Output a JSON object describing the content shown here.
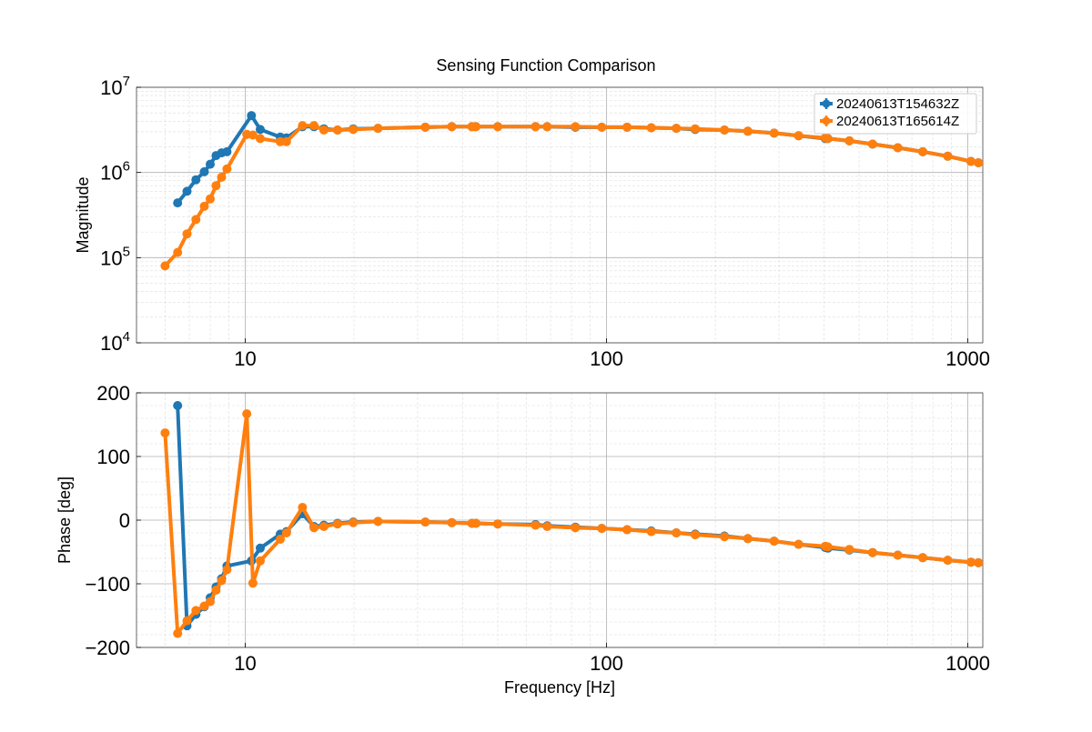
{
  "chart_data": [
    {
      "type": "line",
      "title": "Sensing Function Comparison",
      "xlabel": "",
      "ylabel": "Magnitude",
      "xscale": "log",
      "yscale": "log",
      "xlim": [
        5,
        1100
      ],
      "ylim": [
        10000,
        10000000
      ],
      "xticks": [
        {
          "value": 10,
          "label": "10"
        },
        {
          "value": 100,
          "label": "100"
        },
        {
          "value": 1000,
          "label": "1000"
        }
      ],
      "yticks": [
        {
          "value": 10000,
          "base": "10",
          "exp": "4"
        },
        {
          "value": 100000,
          "base": "10",
          "exp": "5"
        },
        {
          "value": 1000000,
          "base": "10",
          "exp": "6"
        },
        {
          "value": 10000000,
          "base": "10",
          "exp": "7"
        }
      ],
      "grid": true,
      "legend": "top-right",
      "series": [
        {
          "name": "20240613T154632Z",
          "color": "#1f77b4",
          "x": [
            6.5,
            6.9,
            7.3,
            7.7,
            8.0,
            8.3,
            8.6,
            8.9,
            10.4,
            11.0,
            12.5,
            13.0,
            14.4,
            15.5,
            16.5,
            18.0,
            19.9,
            23.3,
            31.5,
            37.3,
            42.4,
            43.5,
            50.0,
            63.6,
            68.5,
            82.0,
            97.0,
            114.0,
            133.0,
            156.0,
            176.0,
            212.0,
            246.0,
            291.0,
            340.0,
            403.0,
            410.0,
            470.0,
            545.0,
            640.0,
            750.0,
            880.0,
            1020.0,
            1070.0
          ],
          "y": [
            440000,
            600000,
            820000,
            1020000,
            1250000,
            1580000,
            1700000,
            1750000,
            4650000,
            3200000,
            2600000,
            2550000,
            3450000,
            3450000,
            3250000,
            3150000,
            3250000,
            3300000,
            3400000,
            3450000,
            3450000,
            3450000,
            3450000,
            3450000,
            3450000,
            3400000,
            3400000,
            3400000,
            3350000,
            3300000,
            3200000,
            3150000,
            3050000,
            2900000,
            2700000,
            2500000,
            2500000,
            2350000,
            2150000,
            1950000,
            1750000,
            1550000,
            1350000,
            1300000
          ]
        },
        {
          "name": "20240613T165614Z",
          "color": "#ff7f0e",
          "x": [
            6.0,
            6.5,
            6.9,
            7.3,
            7.7,
            8.0,
            8.3,
            8.6,
            8.9,
            10.1,
            10.5,
            11.0,
            12.5,
            13.0,
            14.4,
            15.5,
            16.5,
            18.0,
            19.9,
            23.3,
            31.5,
            37.3,
            42.4,
            43.5,
            50.0,
            63.6,
            68.5,
            82.0,
            97.0,
            114.0,
            133.0,
            156.0,
            176.0,
            212.0,
            246.0,
            291.0,
            340.0,
            403.0,
            410.0,
            470.0,
            545.0,
            640.0,
            750.0,
            880.0,
            1020.0,
            1070.0
          ],
          "y": [
            80000,
            115000,
            190000,
            280000,
            400000,
            490000,
            700000,
            880000,
            1100000,
            2800000,
            2750000,
            2500000,
            2300000,
            2300000,
            3550000,
            3550000,
            3150000,
            3150000,
            3200000,
            3300000,
            3400000,
            3450000,
            3450000,
            3450000,
            3450000,
            3450000,
            3450000,
            3450000,
            3400000,
            3400000,
            3350000,
            3300000,
            3250000,
            3150000,
            3050000,
            2900000,
            2700000,
            2550000,
            2500000,
            2350000,
            2150000,
            1950000,
            1750000,
            1550000,
            1350000,
            1300000
          ]
        }
      ]
    },
    {
      "type": "line",
      "title": "",
      "xlabel": "Frequency [Hz]",
      "ylabel": "Phase [deg]",
      "xscale": "log",
      "yscale": "linear",
      "xlim": [
        5,
        1100
      ],
      "ylim": [
        -200,
        200
      ],
      "xticks": [
        {
          "value": 10,
          "label": "10"
        },
        {
          "value": 100,
          "label": "100"
        },
        {
          "value": 1000,
          "label": "1000"
        }
      ],
      "yticks": [
        {
          "value": -200,
          "label": "−200"
        },
        {
          "value": -100,
          "label": "−100"
        },
        {
          "value": 0,
          "label": "0"
        },
        {
          "value": 100,
          "label": "100"
        },
        {
          "value": 200,
          "label": "200"
        }
      ],
      "grid": true,
      "legend": "none",
      "series": [
        {
          "color": "#1f77b4",
          "x": [
            6.5,
            6.9,
            7.3,
            7.7,
            8.0,
            8.3,
            8.6,
            8.9,
            10.4,
            11.0,
            12.5,
            13.0,
            14.4,
            15.5,
            16.5,
            18.0,
            19.9,
            23.3,
            31.5,
            37.3,
            42.4,
            43.5,
            50.0,
            63.6,
            68.5,
            82.0,
            97.0,
            114.0,
            133.0,
            156.0,
            176.0,
            212.0,
            246.0,
            291.0,
            340.0,
            403.0,
            410.0,
            470.0,
            545.0,
            640.0,
            750.0,
            880.0,
            1020.0,
            1070.0
          ],
          "y": [
            180,
            -166,
            -148,
            -136,
            -122,
            -105,
            -92,
            -72,
            -64,
            -44,
            -22,
            -18,
            10,
            -10,
            -8,
            -5,
            -3,
            -2,
            -3,
            -4,
            -5,
            -5,
            -6,
            -7,
            -9,
            -11,
            -13,
            -15,
            -17,
            -20,
            -22,
            -25,
            -29,
            -33,
            -38,
            -43,
            -44,
            -47,
            -51,
            -55,
            -59,
            -63,
            -66,
            -67
          ]
        },
        {
          "color": "#ff7f0e",
          "x": [
            6.0,
            6.5,
            6.9,
            7.3,
            7.7,
            8.0,
            8.3,
            8.6,
            8.9,
            10.1,
            10.5,
            11.0,
            12.5,
            13.0,
            14.4,
            15.5,
            16.5,
            18.0,
            19.9,
            23.3,
            31.5,
            37.3,
            42.4,
            43.5,
            50.0,
            63.6,
            68.5,
            82.0,
            97.0,
            114.0,
            133.0,
            156.0,
            176.0,
            212.0,
            246.0,
            291.0,
            340.0,
            403.0,
            410.0,
            470.0,
            545.0,
            640.0,
            750.0,
            880.0,
            1020.0,
            1070.0
          ],
          "y": [
            137,
            -178,
            -158,
            -142,
            -135,
            -128,
            -110,
            -95,
            -78,
            167,
            -99,
            -64,
            -30,
            -20,
            20,
            -12,
            -10,
            -6,
            -4,
            -2,
            -3,
            -4,
            -5,
            -5,
            -6,
            -8,
            -10,
            -12,
            -13,
            -15,
            -18,
            -20,
            -23,
            -26,
            -29,
            -33,
            -38,
            -41,
            -42,
            -46,
            -51,
            -55,
            -59,
            -63,
            -66,
            -67
          ]
        }
      ]
    }
  ]
}
